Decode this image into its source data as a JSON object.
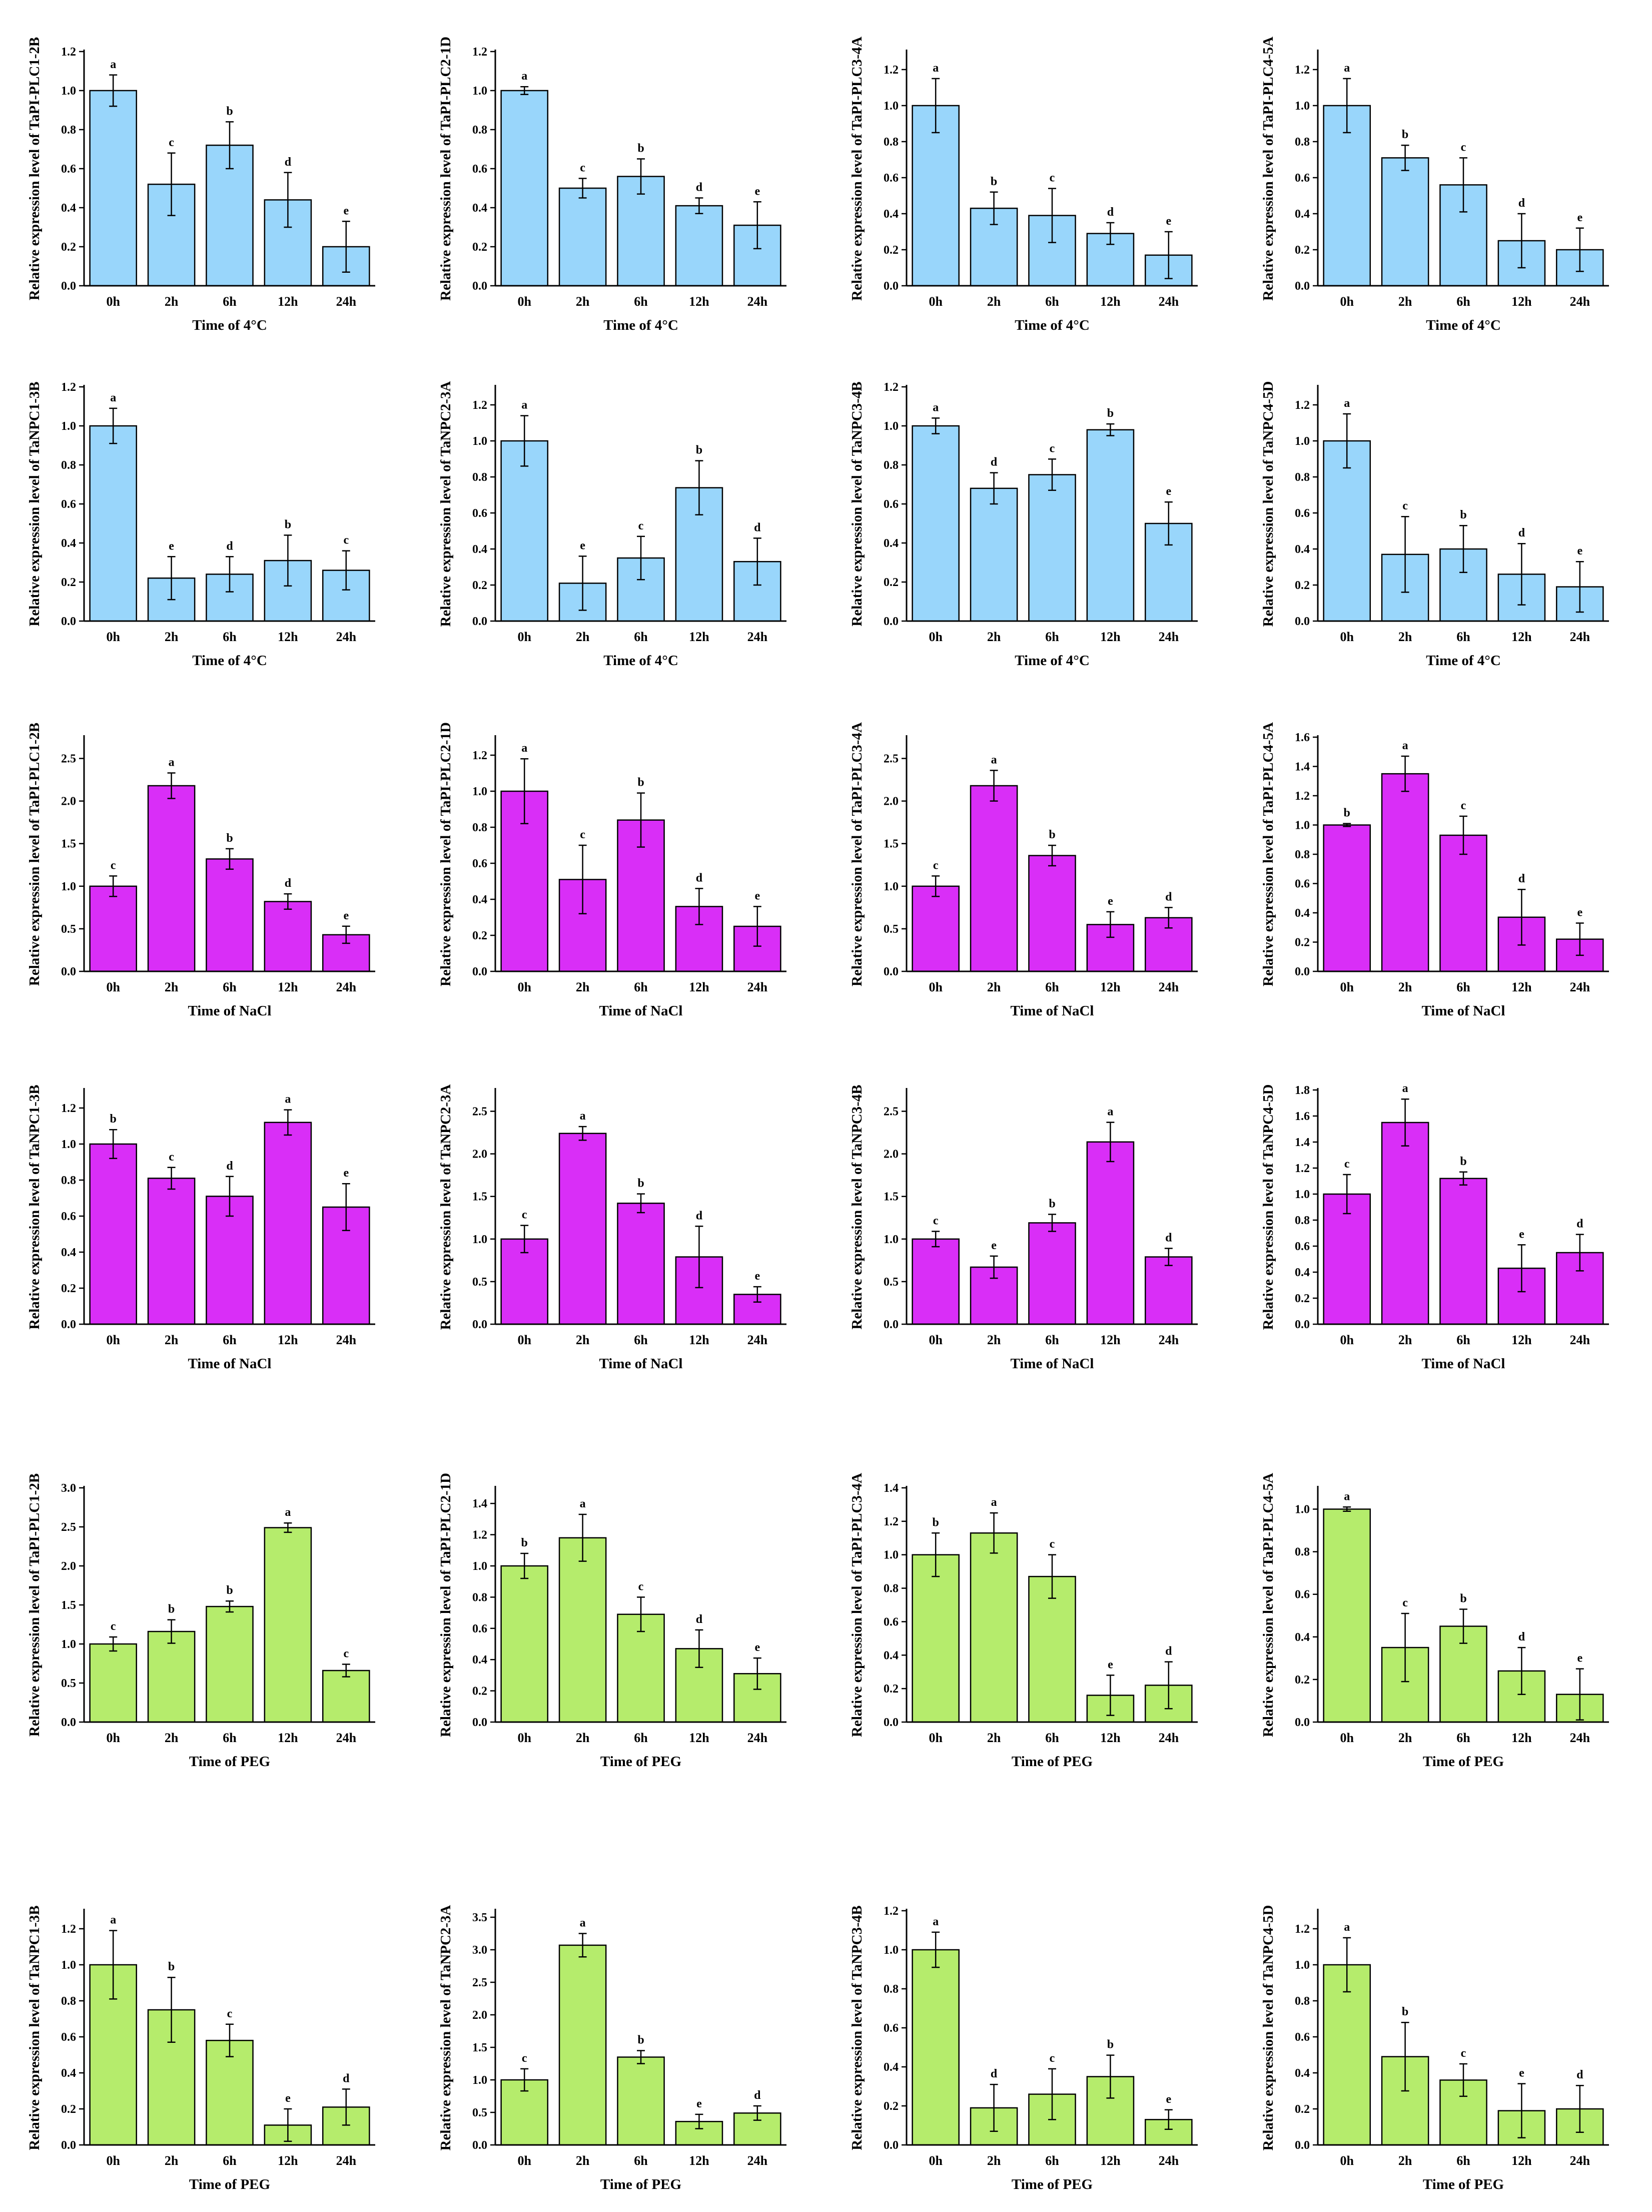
{
  "chart_data": [
    {
      "type": "bar",
      "ylabel": "Relative expression level of TaPI-PLC1-2B",
      "xlabel": "Time of 4°C",
      "categories": [
        "0h",
        "2h",
        "6h",
        "12h",
        "24h"
      ],
      "values": [
        1.0,
        0.52,
        0.72,
        0.44,
        0.2
      ],
      "errors": [
        0.08,
        0.16,
        0.12,
        0.14,
        0.13
      ],
      "letters": [
        "a",
        "c",
        "b",
        "d",
        "e"
      ],
      "ylim": [
        0,
        1.2
      ],
      "yticks": [
        "0.0",
        "0.2",
        "0.4",
        "0.6",
        "0.8",
        "1.0",
        "1.2"
      ],
      "bar_color": "#99d6fb"
    },
    {
      "type": "bar",
      "ylabel": "Relative expression level of TaPI-PLC2-1D",
      "xlabel": "Time of 4°C",
      "categories": [
        "0h",
        "2h",
        "6h",
        "12h",
        "24h"
      ],
      "values": [
        1.0,
        0.5,
        0.56,
        0.41,
        0.31
      ],
      "errors": [
        0.02,
        0.05,
        0.09,
        0.04,
        0.12
      ],
      "letters": [
        "a",
        "c",
        "b",
        "d",
        "e"
      ],
      "ylim": [
        0,
        1.2
      ],
      "yticks": [
        "0.0",
        "0.2",
        "0.4",
        "0.6",
        "0.8",
        "1.0",
        "1.2"
      ],
      "bar_color": "#99d6fb"
    },
    {
      "type": "bar",
      "ylabel": "Relative expression level of TaPI-PLC3-4A",
      "xlabel": "Time of 4°C",
      "categories": [
        "0h",
        "2h",
        "6h",
        "12h",
        "24h"
      ],
      "values": [
        1.0,
        0.43,
        0.39,
        0.29,
        0.17
      ],
      "errors": [
        0.15,
        0.09,
        0.15,
        0.06,
        0.13
      ],
      "letters": [
        "a",
        "b",
        "c",
        "d",
        "e"
      ],
      "ylim": [
        0,
        1.3
      ],
      "yticks": [
        "0.0",
        "0.2",
        "0.4",
        "0.6",
        "0.8",
        "1.0",
        "1.2"
      ],
      "bar_color": "#99d6fb"
    },
    {
      "type": "bar",
      "ylabel": "Relative expression level of TaPI-PLC4-5A",
      "xlabel": "Time of 4°C",
      "categories": [
        "0h",
        "2h",
        "6h",
        "12h",
        "24h"
      ],
      "values": [
        1.0,
        0.71,
        0.56,
        0.25,
        0.2
      ],
      "errors": [
        0.15,
        0.07,
        0.15,
        0.15,
        0.12
      ],
      "letters": [
        "a",
        "b",
        "c",
        "d",
        "e"
      ],
      "ylim": [
        0,
        1.3
      ],
      "yticks": [
        "0.0",
        "0.2",
        "0.4",
        "0.6",
        "0.8",
        "1.0",
        "1.2"
      ],
      "bar_color": "#99d6fb"
    },
    {
      "type": "bar",
      "ylabel": "Relative expression level of TaNPC1-3B",
      "xlabel": "Time of 4°C",
      "categories": [
        "0h",
        "2h",
        "6h",
        "12h",
        "24h"
      ],
      "values": [
        1.0,
        0.22,
        0.24,
        0.31,
        0.26
      ],
      "errors": [
        0.09,
        0.11,
        0.09,
        0.13,
        0.1
      ],
      "letters": [
        "a",
        "e",
        "d",
        "b",
        "c"
      ],
      "ylim": [
        0,
        1.2
      ],
      "yticks": [
        "0.0",
        "0.2",
        "0.4",
        "0.6",
        "0.8",
        "1.0",
        "1.2"
      ],
      "bar_color": "#99d6fb"
    },
    {
      "type": "bar",
      "ylabel": "Relative expression level of TaNPC2-3A",
      "xlabel": "Time of 4°C",
      "categories": [
        "0h",
        "2h",
        "6h",
        "12h",
        "24h"
      ],
      "values": [
        1.0,
        0.21,
        0.35,
        0.74,
        0.33
      ],
      "errors": [
        0.14,
        0.15,
        0.12,
        0.15,
        0.13
      ],
      "letters": [
        "a",
        "e",
        "c",
        "b",
        "d"
      ],
      "ylim": [
        0,
        1.3
      ],
      "yticks": [
        "0.0",
        "0.2",
        "0.4",
        "0.6",
        "0.8",
        "1.0",
        "1.2"
      ],
      "bar_color": "#99d6fb"
    },
    {
      "type": "bar",
      "ylabel": "Relative expression level of TaNPC3-4B",
      "xlabel": "Time of 4°C",
      "categories": [
        "0h",
        "2h",
        "6h",
        "12h",
        "24h"
      ],
      "values": [
        1.0,
        0.68,
        0.75,
        0.98,
        0.5
      ],
      "errors": [
        0.04,
        0.08,
        0.08,
        0.03,
        0.11
      ],
      "letters": [
        "a",
        "d",
        "c",
        "b",
        "e"
      ],
      "ylim": [
        0,
        1.2
      ],
      "yticks": [
        "0.0",
        "0.2",
        "0.4",
        "0.6",
        "0.8",
        "1.0",
        "1.2"
      ],
      "bar_color": "#99d6fb"
    },
    {
      "type": "bar",
      "ylabel": "Relative expression level of TaNPC4-5D",
      "xlabel": "Time of 4°C",
      "categories": [
        "0h",
        "2h",
        "6h",
        "12h",
        "24h"
      ],
      "values": [
        1.0,
        0.37,
        0.4,
        0.26,
        0.19
      ],
      "errors": [
        0.15,
        0.21,
        0.13,
        0.17,
        0.14
      ],
      "letters": [
        "a",
        "c",
        "b",
        "d",
        "e"
      ],
      "ylim": [
        0,
        1.3
      ],
      "yticks": [
        "0.0",
        "0.2",
        "0.4",
        "0.6",
        "0.8",
        "1.0",
        "1.2"
      ],
      "bar_color": "#99d6fb"
    },
    {
      "type": "bar",
      "ylabel": "Relative expression level of TaPI-PLC1-2B",
      "xlabel": "Time of NaCl",
      "categories": [
        "0h",
        "2h",
        "6h",
        "12h",
        "24h"
      ],
      "values": [
        1.0,
        2.18,
        1.32,
        0.82,
        0.43
      ],
      "errors": [
        0.12,
        0.15,
        0.12,
        0.09,
        0.1
      ],
      "letters": [
        "c",
        "a",
        "b",
        "d",
        "e"
      ],
      "ylim": [
        0,
        2.75
      ],
      "yticks": [
        "0.0",
        "0.5",
        "1.0",
        "1.5",
        "2.0",
        "2.5"
      ],
      "bar_color": "#d92ef7"
    },
    {
      "type": "bar",
      "ylabel": "Relative expression level of TaPI-PLC2-1D",
      "xlabel": "Time of NaCl",
      "categories": [
        "0h",
        "2h",
        "6h",
        "12h",
        "24h"
      ],
      "values": [
        1.0,
        0.51,
        0.84,
        0.36,
        0.25
      ],
      "errors": [
        0.18,
        0.19,
        0.15,
        0.1,
        0.11
      ],
      "letters": [
        "a",
        "c",
        "b",
        "d",
        "e"
      ],
      "ylim": [
        0,
        1.3
      ],
      "yticks": [
        "0.0",
        "0.2",
        "0.4",
        "0.6",
        "0.8",
        "1.0",
        "1.2"
      ],
      "bar_color": "#d92ef7"
    },
    {
      "type": "bar",
      "ylabel": "Relative expression level of TaPI-PLC3-4A",
      "xlabel": "Time of NaCl",
      "categories": [
        "0h",
        "2h",
        "6h",
        "12h",
        "24h"
      ],
      "values": [
        1.0,
        2.18,
        1.36,
        0.55,
        0.63
      ],
      "errors": [
        0.12,
        0.18,
        0.12,
        0.15,
        0.12
      ],
      "letters": [
        "c",
        "a",
        "b",
        "e",
        "d"
      ],
      "ylim": [
        0,
        2.75
      ],
      "yticks": [
        "0.0",
        "0.5",
        "1.0",
        "1.5",
        "2.0",
        "2.5"
      ],
      "bar_color": "#d92ef7"
    },
    {
      "type": "bar",
      "ylabel": "Relative expression level of TaPI-PLC4-5A",
      "xlabel": "Time of NaCl",
      "categories": [
        "0h",
        "2h",
        "6h",
        "12h",
        "24h"
      ],
      "values": [
        1.0,
        1.35,
        0.93,
        0.37,
        0.22
      ],
      "errors": [
        0.01,
        0.12,
        0.13,
        0.19,
        0.11
      ],
      "letters": [
        "b",
        "a",
        "c",
        "d",
        "e"
      ],
      "ylim": [
        0,
        1.6
      ],
      "yticks": [
        "0.0",
        "0.2",
        "0.4",
        "0.6",
        "0.8",
        "1.0",
        "1.2",
        "1.4",
        "1.6"
      ],
      "bar_color": "#d92ef7"
    },
    {
      "type": "bar",
      "ylabel": "Relative expression level of TaNPC1-3B",
      "xlabel": "Time of NaCl",
      "categories": [
        "0h",
        "2h",
        "6h",
        "12h",
        "24h"
      ],
      "values": [
        1.0,
        0.81,
        0.71,
        1.12,
        0.65
      ],
      "errors": [
        0.08,
        0.06,
        0.11,
        0.07,
        0.13
      ],
      "letters": [
        "b",
        "c",
        "d",
        "a",
        "e"
      ],
      "ylim": [
        0,
        1.3
      ],
      "yticks": [
        "0.0",
        "0.2",
        "0.4",
        "0.6",
        "0.8",
        "1.0",
        "1.2"
      ],
      "bar_color": "#d92ef7"
    },
    {
      "type": "bar",
      "ylabel": "Relative expression level of TaNPC2-3A",
      "xlabel": "Time of NaCl",
      "categories": [
        "0h",
        "2h",
        "6h",
        "12h",
        "24h"
      ],
      "values": [
        1.0,
        2.24,
        1.42,
        0.79,
        0.35
      ],
      "errors": [
        0.16,
        0.08,
        0.11,
        0.36,
        0.09
      ],
      "letters": [
        "c",
        "a",
        "b",
        "d",
        "e"
      ],
      "ylim": [
        0,
        2.75
      ],
      "yticks": [
        "0.0",
        "0.5",
        "1.0",
        "1.5",
        "2.0",
        "2.5"
      ],
      "bar_color": "#d92ef7"
    },
    {
      "type": "bar",
      "ylabel": "Relative expression level of TaNPC3-4B",
      "xlabel": "Time of NaCl",
      "categories": [
        "0h",
        "2h",
        "6h",
        "12h",
        "24h"
      ],
      "values": [
        1.0,
        0.67,
        1.19,
        2.14,
        0.79
      ],
      "errors": [
        0.09,
        0.13,
        0.1,
        0.23,
        0.1
      ],
      "letters": [
        "c",
        "e",
        "b",
        "a",
        "d"
      ],
      "ylim": [
        0,
        2.75
      ],
      "yticks": [
        "0.0",
        "0.5",
        "1.0",
        "1.5",
        "2.0",
        "2.5"
      ],
      "bar_color": "#d92ef7"
    },
    {
      "type": "bar",
      "ylabel": "Relative expression level of TaNPC4-5D",
      "xlabel": "Time of NaCl",
      "categories": [
        "0h",
        "2h",
        "6h",
        "12h",
        "24h"
      ],
      "values": [
        1.0,
        1.55,
        1.12,
        0.43,
        0.55
      ],
      "errors": [
        0.15,
        0.18,
        0.05,
        0.18,
        0.14
      ],
      "letters": [
        "c",
        "a",
        "b",
        "e",
        "d"
      ],
      "ylim": [
        0,
        1.8
      ],
      "yticks": [
        "0.0",
        "0.2",
        "0.4",
        "0.6",
        "0.8",
        "1.0",
        "1.2",
        "1.4",
        "1.6",
        "1.8"
      ],
      "bar_color": "#d92ef7"
    },
    {
      "type": "bar",
      "ylabel": "Relative expression level of TaPI-PLC1-2B",
      "xlabel": "Time of PEG",
      "categories": [
        "0h",
        "2h",
        "6h",
        "12h",
        "24h"
      ],
      "values": [
        1.0,
        1.16,
        1.48,
        2.49,
        0.66
      ],
      "errors": [
        0.09,
        0.15,
        0.07,
        0.06,
        0.08
      ],
      "letters": [
        "c",
        "b",
        "b",
        "a",
        "c"
      ],
      "ylim": [
        0,
        3.0
      ],
      "yticks": [
        "0.0",
        "0.5",
        "1.0",
        "1.5",
        "2.0",
        "2.5",
        "3.0"
      ],
      "bar_color": "#b5ec6c"
    },
    {
      "type": "bar",
      "ylabel": "Relative expression level of TaPI-PLC2-1D",
      "xlabel": "Time of PEG",
      "categories": [
        "0h",
        "2h",
        "6h",
        "12h",
        "24h"
      ],
      "values": [
        1.0,
        1.18,
        0.69,
        0.47,
        0.31
      ],
      "errors": [
        0.08,
        0.15,
        0.11,
        0.12,
        0.1
      ],
      "letters": [
        "b",
        "a",
        "c",
        "d",
        "e"
      ],
      "ylim": [
        0,
        1.5
      ],
      "yticks": [
        "0.0",
        "0.2",
        "0.4",
        "0.6",
        "0.8",
        "1.0",
        "1.2",
        "1.4"
      ],
      "bar_color": "#b5ec6c"
    },
    {
      "type": "bar",
      "ylabel": "Relative expression level of TaPI-PLC3-4A",
      "xlabel": "Time of PEG",
      "categories": [
        "0h",
        "2h",
        "6h",
        "12h",
        "24h"
      ],
      "values": [
        1.0,
        1.13,
        0.87,
        0.16,
        0.22
      ],
      "errors": [
        0.13,
        0.12,
        0.13,
        0.12,
        0.14
      ],
      "letters": [
        "b",
        "a",
        "c",
        "e",
        "d"
      ],
      "ylim": [
        0,
        1.4
      ],
      "yticks": [
        "0.0",
        "0.2",
        "0.4",
        "0.6",
        "0.8",
        "1.0",
        "1.2",
        "1.4"
      ],
      "bar_color": "#b5ec6c"
    },
    {
      "type": "bar",
      "ylabel": "Relative expression level of TaPI-PLC4-5A",
      "xlabel": "Time of PEG",
      "categories": [
        "0h",
        "2h",
        "6h",
        "12h",
        "24h"
      ],
      "values": [
        1.0,
        0.35,
        0.45,
        0.24,
        0.13
      ],
      "errors": [
        0.01,
        0.16,
        0.08,
        0.11,
        0.12
      ],
      "letters": [
        "a",
        "c",
        "b",
        "d",
        "e"
      ],
      "ylim": [
        0,
        1.1
      ],
      "yticks": [
        "0.0",
        "0.2",
        "0.4",
        "0.6",
        "0.8",
        "1.0"
      ],
      "bar_color": "#b5ec6c"
    },
    {
      "type": "bar",
      "ylabel": "Relative expression level of TaNPC1-3B",
      "xlabel": "Time of PEG",
      "categories": [
        "0h",
        "2h",
        "6h",
        "12h",
        "24h"
      ],
      "values": [
        1.0,
        0.75,
        0.58,
        0.11,
        0.21
      ],
      "errors": [
        0.19,
        0.18,
        0.09,
        0.09,
        0.1
      ],
      "letters": [
        "a",
        "b",
        "c",
        "e",
        "d"
      ],
      "ylim": [
        0,
        1.3
      ],
      "yticks": [
        "0.0",
        "0.2",
        "0.4",
        "0.6",
        "0.8",
        "1.0",
        "1.2"
      ],
      "bar_color": "#b5ec6c"
    },
    {
      "type": "bar",
      "ylabel": "Relative expression level of TaNPC2-3A",
      "xlabel": "Time of PEG",
      "categories": [
        "0h",
        "2h",
        "6h",
        "12h",
        "24h"
      ],
      "values": [
        1.0,
        3.07,
        1.35,
        0.36,
        0.49
      ],
      "errors": [
        0.17,
        0.18,
        0.1,
        0.11,
        0.11
      ],
      "letters": [
        "c",
        "a",
        "b",
        "e",
        "d"
      ],
      "ylim": [
        0,
        3.6
      ],
      "yticks": [
        "0.0",
        "0.5",
        "1.0",
        "1.5",
        "2.0",
        "2.5",
        "3.0",
        "3.5"
      ],
      "bar_color": "#b5ec6c"
    },
    {
      "type": "bar",
      "ylabel": "Relative expression level of TaNPC3-4B",
      "xlabel": "Time of PEG",
      "categories": [
        "0h",
        "2h",
        "6h",
        "12h",
        "24h"
      ],
      "values": [
        1.0,
        0.19,
        0.26,
        0.35,
        0.13
      ],
      "errors": [
        0.09,
        0.12,
        0.13,
        0.11,
        0.05
      ],
      "letters": [
        "a",
        "d",
        "c",
        "b",
        "e"
      ],
      "ylim": [
        0,
        1.2
      ],
      "yticks": [
        "0.0",
        "0.2",
        "0.4",
        "0.6",
        "0.8",
        "1.0",
        "1.2"
      ],
      "bar_color": "#b5ec6c"
    },
    {
      "type": "bar",
      "ylabel": "Relative expression level of TaNPC4-5D",
      "xlabel": "Time of PEG",
      "categories": [
        "0h",
        "2h",
        "6h",
        "12h",
        "24h"
      ],
      "values": [
        1.0,
        0.49,
        0.36,
        0.19,
        0.2
      ],
      "errors": [
        0.15,
        0.19,
        0.09,
        0.15,
        0.13
      ],
      "letters": [
        "a",
        "b",
        "c",
        "e",
        "d"
      ],
      "ylim": [
        0,
        1.3
      ],
      "yticks": [
        "0.0",
        "0.2",
        "0.4",
        "0.6",
        "0.8",
        "1.0",
        "1.2"
      ],
      "bar_color": "#b5ec6c"
    }
  ]
}
